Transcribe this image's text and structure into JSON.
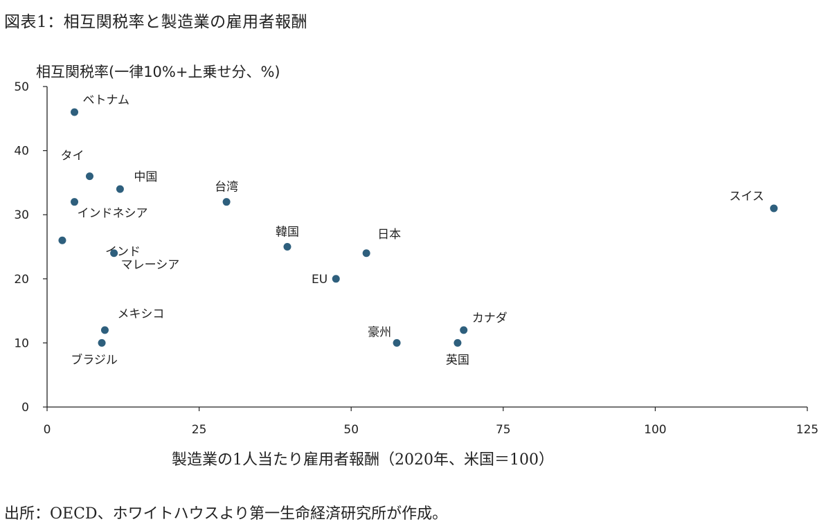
{
  "figure_title": "図表1：相互関税率と製造業の雇用者報酬",
  "source_note": "出所：OECD、ホワイトハウスより第一生命経済研究所が作成。",
  "colors": {
    "marker": "#2e5f7d",
    "axis": "#222222",
    "text": "#222222"
  },
  "chart_data": {
    "type": "scatter",
    "title": "図表1：相互関税率と製造業の雇用者報酬",
    "xlabel": "製造業の1人当たり雇用者報酬（2020年、米国＝100）",
    "ylabel": "相互関税率(一律10%+上乗せ分、%)",
    "xlim": [
      0,
      125
    ],
    "ylim": [
      0,
      50
    ],
    "xticks": [
      0,
      25,
      50,
      75,
      100,
      125
    ],
    "yticks": [
      0,
      10,
      20,
      30,
      40,
      50
    ],
    "grid": false,
    "points": [
      {
        "label": "ベトナム",
        "x": 4.5,
        "y": 46,
        "label_pos": "upper-right"
      },
      {
        "label": "タイ",
        "x": 7,
        "y": 36,
        "label_pos": "upper-left"
      },
      {
        "label": "中国",
        "x": 12,
        "y": 34,
        "label_pos": "upper-right"
      },
      {
        "label": "インドネシア",
        "x": 4.5,
        "y": 32,
        "label_pos": "lower-right"
      },
      {
        "label": "台湾",
        "x": 29.5,
        "y": 32,
        "label_pos": "above"
      },
      {
        "label": "インド",
        "x": 2.5,
        "y": 26,
        "label_pos": "lower-right"
      },
      {
        "label": "マレーシア",
        "x": 11,
        "y": 24,
        "label_pos": "lower-right"
      },
      {
        "label": "韓国",
        "x": 39.5,
        "y": 25,
        "label_pos": "above"
      },
      {
        "label": "日本",
        "x": 52.5,
        "y": 24,
        "label_pos": "upper-right"
      },
      {
        "label": "EU",
        "x": 47.5,
        "y": 20,
        "label_pos": "left"
      },
      {
        "label": "メキシコ",
        "x": 9.5,
        "y": 12,
        "label_pos": "upper-right"
      },
      {
        "label": "ブラジル",
        "x": 9,
        "y": 10,
        "label_pos": "below"
      },
      {
        "label": "豪州",
        "x": 57.5,
        "y": 10,
        "label_pos": "upper-left"
      },
      {
        "label": "カナダ",
        "x": 68.5,
        "y": 12,
        "label_pos": "upper-right"
      },
      {
        "label": "英国",
        "x": 67.5,
        "y": 10,
        "label_pos": "below"
      },
      {
        "label": "スイス",
        "x": 119.5,
        "y": 31,
        "label_pos": "upper-left"
      }
    ]
  }
}
